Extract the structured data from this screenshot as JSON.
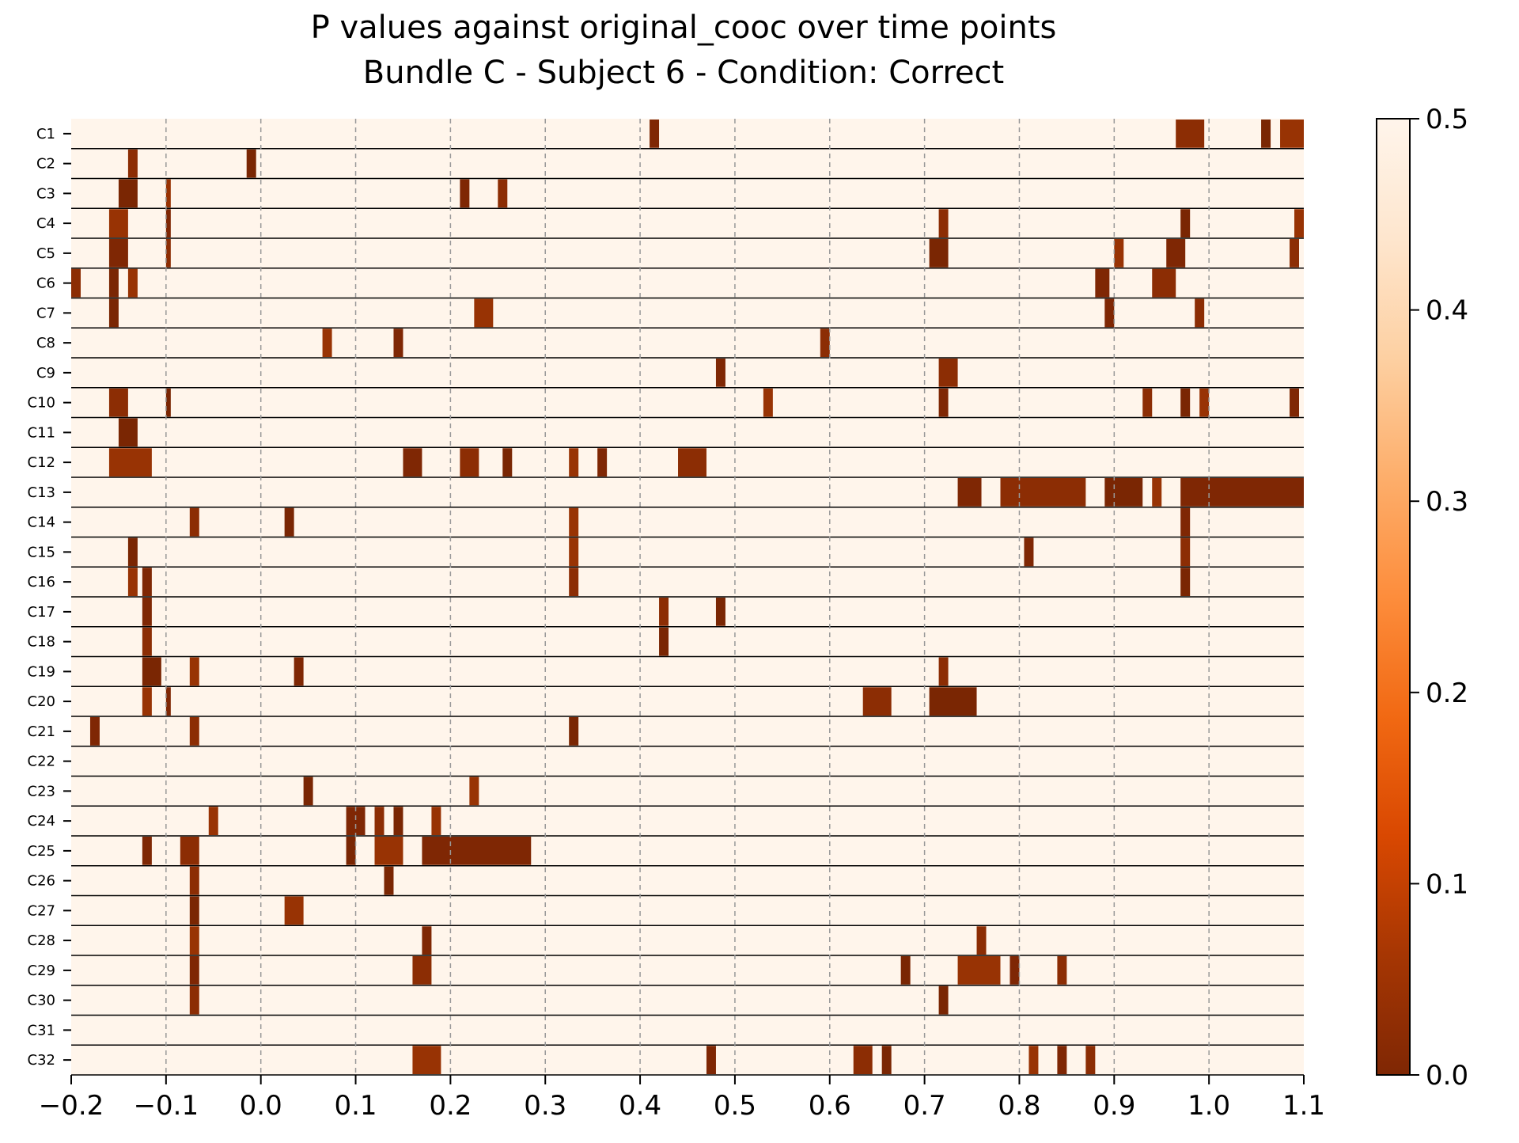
{
  "chart_data": {
    "type": "heatmap",
    "title": "P values against original_cooc over time points",
    "subtitle": "Bundle C - Subject 6 - Condition: Correct",
    "xlabel": "",
    "ylabel": "",
    "xlim": [
      -0.2,
      1.1
    ],
    "x_ticks": [
      "−0.2",
      "−0.1",
      "0.0",
      "0.1",
      "0.2",
      "0.3",
      "0.4",
      "0.5",
      "0.6",
      "0.7",
      "0.8",
      "0.9",
      "1.0",
      "1.1"
    ],
    "x_grid_values": [
      -0.1,
      0.0,
      0.1,
      0.2,
      0.3,
      0.4,
      0.5,
      0.6,
      0.7,
      0.8,
      0.9,
      1.0
    ],
    "grid": "vertical dashed",
    "colormap": "Oranges_r",
    "colorbar": {
      "range": [
        0.0,
        0.5
      ],
      "ticks": [
        "0.0",
        "0.1",
        "0.2",
        "0.3",
        "0.4",
        "0.5"
      ],
      "placement": "right",
      "color_low": "#7f2704",
      "color_high": "#fff5eb"
    },
    "background_value": 0.5,
    "channels": [
      "C1",
      "C2",
      "C3",
      "C4",
      "C5",
      "C6",
      "C7",
      "C8",
      "C9",
      "C10",
      "C11",
      "C12",
      "C13",
      "C14",
      "C15",
      "C16",
      "C17",
      "C18",
      "C19",
      "C20",
      "C21",
      "C22",
      "C23",
      "C24",
      "C25",
      "C26",
      "C27",
      "C28",
      "C29",
      "C30",
      "C31",
      "C32"
    ],
    "significant_segments": [
      [
        [
          0.41,
          0.42
        ],
        [
          0.965,
          0.995
        ],
        [
          1.055,
          1.065
        ],
        [
          1.075,
          1.1
        ]
      ],
      [
        [
          -0.14,
          -0.13
        ],
        [
          -0.015,
          -0.005
        ]
      ],
      [
        [
          -0.15,
          -0.13
        ],
        [
          -0.1,
          -0.095
        ],
        [
          0.21,
          0.22
        ],
        [
          0.25,
          0.26
        ]
      ],
      [
        [
          -0.16,
          -0.14
        ],
        [
          -0.1,
          -0.095
        ],
        [
          0.715,
          0.725
        ],
        [
          0.97,
          0.98
        ],
        [
          1.09,
          1.1
        ]
      ],
      [
        [
          -0.16,
          -0.14
        ],
        [
          -0.1,
          -0.095
        ],
        [
          0.705,
          0.725
        ],
        [
          0.9,
          0.91
        ],
        [
          0.955,
          0.975
        ],
        [
          1.085,
          1.095
        ]
      ],
      [
        [
          -0.2,
          -0.19
        ],
        [
          -0.16,
          -0.15
        ],
        [
          -0.14,
          -0.13
        ],
        [
          0.88,
          0.895
        ],
        [
          0.94,
          0.965
        ]
      ],
      [
        [
          -0.16,
          -0.15
        ],
        [
          0.225,
          0.245
        ],
        [
          0.89,
          0.9
        ],
        [
          0.985,
          0.995
        ]
      ],
      [
        [
          0.065,
          0.075
        ],
        [
          0.14,
          0.15
        ],
        [
          0.59,
          0.6
        ]
      ],
      [
        [
          0.48,
          0.49
        ],
        [
          0.715,
          0.735
        ]
      ],
      [
        [
          -0.16,
          -0.14
        ],
        [
          -0.1,
          -0.095
        ],
        [
          0.53,
          0.54
        ],
        [
          0.715,
          0.725
        ],
        [
          0.93,
          0.94
        ],
        [
          0.97,
          0.98
        ],
        [
          0.99,
          1.0
        ],
        [
          1.085,
          1.095
        ]
      ],
      [
        [
          -0.15,
          -0.13
        ]
      ],
      [
        [
          -0.16,
          -0.115
        ],
        [
          0.15,
          0.17
        ],
        [
          0.21,
          0.23
        ],
        [
          0.255,
          0.265
        ],
        [
          0.325,
          0.335
        ],
        [
          0.355,
          0.365
        ],
        [
          0.44,
          0.47
        ]
      ],
      [
        [
          0.735,
          0.76
        ],
        [
          0.78,
          0.87
        ],
        [
          0.89,
          0.93
        ],
        [
          0.94,
          0.95
        ],
        [
          0.97,
          1.1
        ]
      ],
      [
        [
          -0.075,
          -0.065
        ],
        [
          0.025,
          0.035
        ],
        [
          0.325,
          0.335
        ],
        [
          0.97,
          0.98
        ]
      ],
      [
        [
          -0.14,
          -0.13
        ],
        [
          0.325,
          0.335
        ],
        [
          0.805,
          0.815
        ],
        [
          0.97,
          0.98
        ]
      ],
      [
        [
          -0.14,
          -0.13
        ],
        [
          -0.125,
          -0.115
        ],
        [
          0.325,
          0.335
        ],
        [
          0.97,
          0.98
        ]
      ],
      [
        [
          -0.125,
          -0.115
        ],
        [
          0.42,
          0.43
        ],
        [
          0.48,
          0.49
        ]
      ],
      [
        [
          -0.125,
          -0.115
        ],
        [
          0.42,
          0.43
        ]
      ],
      [
        [
          -0.125,
          -0.105
        ],
        [
          -0.075,
          -0.065
        ],
        [
          0.035,
          0.045
        ],
        [
          0.715,
          0.725
        ]
      ],
      [
        [
          -0.125,
          -0.115
        ],
        [
          -0.1,
          -0.095
        ],
        [
          0.635,
          0.665
        ],
        [
          0.705,
          0.755
        ]
      ],
      [
        [
          -0.18,
          -0.17
        ],
        [
          -0.075,
          -0.065
        ],
        [
          0.325,
          0.335
        ]
      ],
      [],
      [
        [
          0.045,
          0.055
        ],
        [
          0.22,
          0.23
        ]
      ],
      [
        [
          -0.055,
          -0.045
        ],
        [
          0.09,
          0.11
        ],
        [
          0.12,
          0.13
        ],
        [
          0.14,
          0.15
        ],
        [
          0.18,
          0.19
        ]
      ],
      [
        [
          -0.125,
          -0.115
        ],
        [
          -0.085,
          -0.065
        ],
        [
          0.09,
          0.1
        ],
        [
          0.12,
          0.15
        ],
        [
          0.17,
          0.285
        ]
      ],
      [
        [
          -0.075,
          -0.065
        ],
        [
          0.13,
          0.14
        ]
      ],
      [
        [
          -0.075,
          -0.065
        ],
        [
          0.025,
          0.045
        ]
      ],
      [
        [
          -0.075,
          -0.065
        ],
        [
          0.17,
          0.18
        ],
        [
          0.755,
          0.765
        ]
      ],
      [
        [
          -0.075,
          -0.065
        ],
        [
          0.16,
          0.18
        ],
        [
          0.675,
          0.685
        ],
        [
          0.735,
          0.78
        ],
        [
          0.79,
          0.8
        ],
        [
          0.84,
          0.85
        ]
      ],
      [
        [
          -0.075,
          -0.065
        ],
        [
          0.715,
          0.725
        ]
      ],
      [],
      [
        [
          0.16,
          0.19
        ],
        [
          0.47,
          0.48
        ],
        [
          0.625,
          0.645
        ],
        [
          0.655,
          0.665
        ],
        [
          0.81,
          0.82
        ],
        [
          0.84,
          0.85
        ],
        [
          0.87,
          0.88
        ]
      ]
    ]
  }
}
